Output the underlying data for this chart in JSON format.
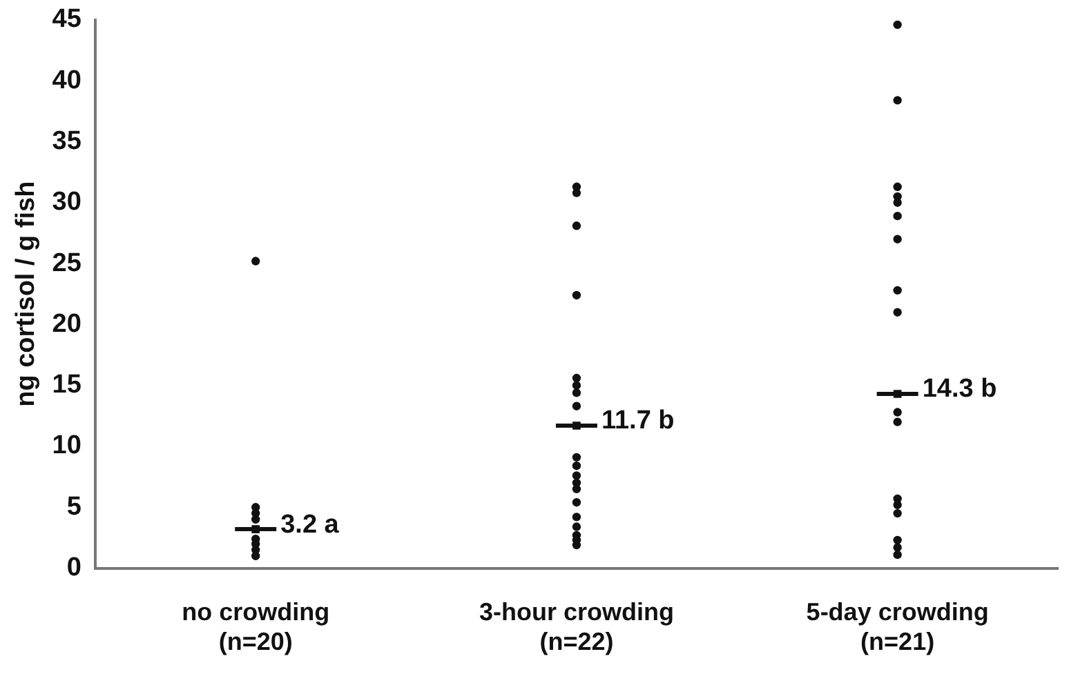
{
  "chart_data": {
    "type": "scatter",
    "ylabel": "ng cortisol / g fish",
    "categories": [
      "no crowding\n(n=20)",
      "3-hour crowding\n(n=22)",
      "5-day crowding\n(n=21)"
    ],
    "series": [
      {
        "type": "scatter",
        "color": "#111111",
        "x": [
          "no crowding\n(n=20)",
          "no crowding\n(n=20)",
          "no crowding\n(n=20)",
          "no crowding\n(n=20)",
          "no crowding\n(n=20)",
          "no crowding\n(n=20)",
          "no crowding\n(n=20)",
          "no crowding\n(n=20)",
          "3-hour crowding\n(n=22)",
          "3-hour crowding\n(n=22)",
          "3-hour crowding\n(n=22)",
          "3-hour crowding\n(n=22)",
          "3-hour crowding\n(n=22)",
          "3-hour crowding\n(n=22)",
          "3-hour crowding\n(n=22)",
          "3-hour crowding\n(n=22)",
          "3-hour crowding\n(n=22)",
          "3-hour crowding\n(n=22)",
          "3-hour crowding\n(n=22)",
          "3-hour crowding\n(n=22)",
          "3-hour crowding\n(n=22)",
          "3-hour crowding\n(n=22)",
          "3-hour crowding\n(n=22)",
          "3-hour crowding\n(n=22)",
          "3-hour crowding\n(n=22)",
          "3-hour crowding\n(n=22)",
          "3-hour crowding\n(n=22)",
          "5-day crowding\n(n=21)",
          "5-day crowding\n(n=21)",
          "5-day crowding\n(n=21)",
          "5-day crowding\n(n=21)",
          "5-day crowding\n(n=21)",
          "5-day crowding\n(n=21)",
          "5-day crowding\n(n=21)",
          "5-day crowding\n(n=21)",
          "5-day crowding\n(n=21)",
          "5-day crowding\n(n=21)",
          "5-day crowding\n(n=21)",
          "5-day crowding\n(n=21)",
          "5-day crowding\n(n=21)",
          "5-day crowding\n(n=21)",
          "5-day crowding\n(n=21)",
          "5-day crowding\n(n=21)",
          "5-day crowding\n(n=21)"
        ],
        "values": [
          25.2,
          5,
          4.5,
          4,
          2.4,
          2,
          1.5,
          1,
          31.3,
          30.8,
          28.1,
          22.4,
          15.6,
          15,
          14.4,
          13.3,
          9.1,
          8.4,
          7.6,
          7,
          6.5,
          5.4,
          4.2,
          3.4,
          2.7,
          2.3,
          1.9,
          44.6,
          38.4,
          31.3,
          30.5,
          30,
          28.9,
          27,
          22.8,
          21,
          12.8,
          12,
          5.7,
          5.2,
          4.5,
          2.3,
          1.7,
          1.1
        ]
      },
      {
        "color": "#111111",
        "marker": "square",
        "x": [
          "no crowding\n(n=20)",
          "3-hour crowding\n(n=22)",
          "5-day crowding\n(n=21)"
        ],
        "values": [
          3.2,
          11.7,
          14.3
        ],
        "value_labels": [
          "3.2 a",
          "11.7 b",
          "14.3 b"
        ]
      }
    ],
    "ylim": [
      0,
      45
    ],
    "yticks": [
      0,
      5,
      10,
      15,
      20,
      25,
      30,
      35,
      40,
      45
    ],
    "grid": false,
    "legend": false,
    "marker": "circle"
  }
}
